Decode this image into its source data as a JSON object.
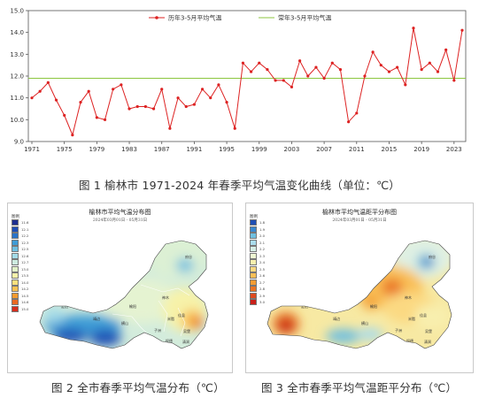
{
  "chart_data": [
    {
      "type": "line",
      "x_start": 1971,
      "x_end": 2024,
      "xticks": [
        "1971",
        "1975",
        "1979",
        "1983",
        "1987",
        "1991",
        "1995",
        "1999",
        "2003",
        "2007",
        "2011",
        "2015",
        "2019",
        "2023"
      ],
      "yticks": [
        "9.0",
        "10.0",
        "11.0",
        "12.0",
        "13.0",
        "14.0",
        "15.0"
      ],
      "ylim": [
        9.0,
        15.0
      ],
      "series": [
        {
          "name": "历年3-5月平均气温",
          "color": "#dd2222",
          "values": [
            11.0,
            11.3,
            11.7,
            10.9,
            10.2,
            9.3,
            10.8,
            11.3,
            10.1,
            10.0,
            11.4,
            11.6,
            10.5,
            10.6,
            10.6,
            10.5,
            11.4,
            9.6,
            11.0,
            10.6,
            10.7,
            11.4,
            11.0,
            11.6,
            10.8,
            9.6,
            12.6,
            12.2,
            12.6,
            12.3,
            11.8,
            11.8,
            11.5,
            12.7,
            12.0,
            12.4,
            11.9,
            12.6,
            12.3,
            9.9,
            10.3,
            12.0,
            13.1,
            12.5,
            12.2,
            12.4,
            11.6,
            14.2,
            12.3,
            12.6,
            12.2,
            13.2,
            11.8,
            14.1
          ]
        },
        {
          "name": "常年3-5月平均气温",
          "color": "#8cc63f",
          "values": [
            11.9
          ]
        }
      ]
    }
  ],
  "captions": {
    "fig1": "图 1  榆林市 1971-2024 年春季平均气温变化曲线（单位：℃）",
    "fig2": "图 2  全市春季平均气温分布（℃）",
    "fig3": "图 3  全市春季平均气温距平分布（℃）"
  },
  "map2": {
    "title": "榆林市平均气温分布图",
    "subtitle": "2024年03月01日 - 05月31日",
    "legend_title": "图例",
    "legend": [
      {
        "label": "11.6",
        "color": "#1e2f8f"
      },
      {
        "label": "12.1",
        "color": "#1f4fb5"
      },
      {
        "label": "12.2",
        "color": "#2a74c9"
      },
      {
        "label": "12.3",
        "color": "#3e9bd6"
      },
      {
        "label": "12.5",
        "color": "#6fbfe0"
      },
      {
        "label": "12.6",
        "color": "#a4dbe8"
      },
      {
        "label": "12.7",
        "color": "#cdebe0"
      },
      {
        "label": "13.0",
        "color": "#e2f2c8"
      },
      {
        "label": "13.5",
        "color": "#f7f2a9"
      },
      {
        "label": "14.0",
        "color": "#fbe07e"
      },
      {
        "label": "14.2",
        "color": "#f9c152"
      },
      {
        "label": "14.5",
        "color": "#f39a2f"
      },
      {
        "label": "14.6",
        "color": "#ea6a23"
      },
      {
        "label": "15.0",
        "color": "#d72d1c"
      }
    ]
  },
  "map3": {
    "title": "榆林市平均气温距平分布图",
    "subtitle": "2024年03月01日 - 05月31日",
    "legend_title": "图例",
    "legend": [
      {
        "label": "1.8",
        "color": "#1f4fb5"
      },
      {
        "label": "1.9",
        "color": "#3a88d0"
      },
      {
        "label": "2.0",
        "color": "#6fbfe0"
      },
      {
        "label": "2.1",
        "color": "#a9dcec"
      },
      {
        "label": "2.2",
        "color": "#d6efe6"
      },
      {
        "label": "2.3",
        "color": "#eef7d2"
      },
      {
        "label": "2.4",
        "color": "#f8efae"
      },
      {
        "label": "2.5",
        "color": "#fbd982"
      },
      {
        "label": "2.6",
        "color": "#f9bf56"
      },
      {
        "label": "2.7",
        "color": "#f39c33"
      },
      {
        "label": "2.8",
        "color": "#ea7424"
      },
      {
        "label": "2.9",
        "color": "#dd4a1f"
      },
      {
        "label": "3.0",
        "color": "#c8201a"
      }
    ]
  }
}
